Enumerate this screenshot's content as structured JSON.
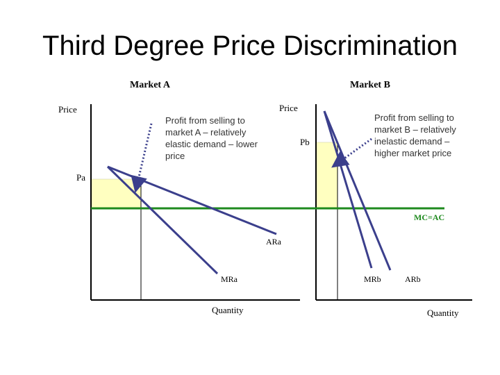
{
  "slide": {
    "title": "Third Degree Price Discrimination"
  },
  "market_a": {
    "heading": "Market A",
    "y_label": "Price",
    "x_label": "Quantity",
    "price_label": "Pa",
    "demand_label": "ARa",
    "mr_label": "MRa",
    "annotation": [
      "Profit from selling to",
      "market A – relatively",
      "elastic demand – lower",
      "price"
    ]
  },
  "market_b": {
    "heading": "Market B",
    "y_label": "Price",
    "x_label": "Quantity",
    "price_label": "Pb",
    "demand_label": "ARb",
    "mr_label": "MRb",
    "annotation": [
      "Profit from selling to",
      "market B – relatively",
      "inelastic demand –",
      "higher market price"
    ]
  },
  "cost": {
    "label": "MC=AC"
  },
  "colors": {
    "curve": "#3b3f8c",
    "cost_line": "#1e8a1e",
    "profit_fill": "#ffffc0",
    "arrow": "#3b3f8c"
  }
}
